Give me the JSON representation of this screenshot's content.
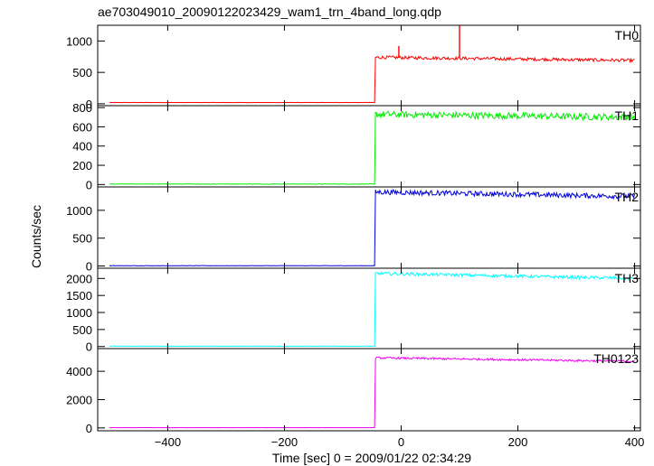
{
  "title": "ae703049010_20090122023429_wam1_trn_4band_long.qdp",
  "xlabel": "Time [sec] 0 = 2009/01/22 02:34:29",
  "ylabel": "Counts/sec",
  "chart_data": {
    "type": "line",
    "title": "ae703049010_20090122023429_wam1_trn_4band_long.qdp",
    "xlabel": "Time [sec] 0 = 2009/01/22 02:34:29",
    "ylabel": "Counts/sec",
    "xlim": [
      -520,
      410
    ],
    "x_ticks": [
      -400,
      -200,
      0,
      200,
      400
    ],
    "trigger_time": -45,
    "panels": [
      {
        "name": "TH0",
        "color": "#ff0000",
        "ylim": [
          -30,
          1250
        ],
        "y_ticks": [
          0,
          500,
          1000
        ],
        "pre_level": 20,
        "post_start_level": 740,
        "post_end_level": 690,
        "noise": 25,
        "spikes": [
          {
            "x": -4,
            "y": 920
          },
          {
            "x": 100,
            "y": 1250
          }
        ]
      },
      {
        "name": "TH1",
        "color": "#00ee00",
        "ylim": [
          -25,
          820
        ],
        "y_ticks": [
          0,
          200,
          400,
          600,
          800
        ],
        "pre_level": 5,
        "post_start_level": 730,
        "post_end_level": 700,
        "noise": 35,
        "spikes": []
      },
      {
        "name": "TH2",
        "color": "#0000dd",
        "ylim": [
          -40,
          1420
        ],
        "y_ticks": [
          0,
          500,
          1000
        ],
        "pre_level": 5,
        "post_start_level": 1330,
        "post_end_level": 1250,
        "noise": 45,
        "spikes": []
      },
      {
        "name": "TH3",
        "color": "#00ffff",
        "ylim": [
          -60,
          2300
        ],
        "y_ticks": [
          0,
          500,
          1000,
          1500,
          2000
        ],
        "pre_level": 10,
        "post_start_level": 2150,
        "post_end_level": 2000,
        "noise": 45,
        "spikes": []
      },
      {
        "name": "TH0123",
        "color": "#ee00ee",
        "ylim": [
          -200,
          5600
        ],
        "y_ticks": [
          0,
          2000,
          4000
        ],
        "pre_level": 20,
        "post_start_level": 4950,
        "post_end_level": 4700,
        "noise": 70,
        "spikes": []
      }
    ]
  }
}
